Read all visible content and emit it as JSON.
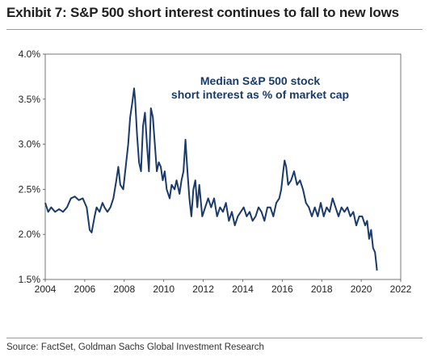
{
  "title": "Exhibit 7: S&P 500 short interest continues to fall to new lows",
  "source": "Source: FactSet, Goldman Sachs Global Investment Research",
  "chart_data": {
    "type": "line",
    "title": "Exhibit 7: S&P 500 short interest continues to fall to new lows",
    "xlabel": "",
    "ylabel": "",
    "xlim": [
      2004,
      2022
    ],
    "ylim": [
      1.5,
      4.0
    ],
    "x_ticks": [
      "2004",
      "2006",
      "2008",
      "2010",
      "2012",
      "2014",
      "2016",
      "2018",
      "2020",
      "2022"
    ],
    "y_ticks": [
      "1.5%",
      "2.0%",
      "2.5%",
      "3.0%",
      "3.5%",
      "4.0%"
    ],
    "grid": false,
    "annotation": [
      "Median S&P 500 stock",
      "short interest as % of market cap"
    ],
    "color": "#1a3a6b",
    "series": [
      {
        "x": [
          2004.0,
          2004.15,
          2004.3,
          2004.5,
          2004.7,
          2004.9,
          2005.1,
          2005.3,
          2005.5,
          2005.7,
          2005.9,
          2006.1,
          2006.25,
          2006.35,
          2006.5,
          2006.6,
          2006.75,
          2006.9,
          2007.0,
          2007.15,
          2007.3,
          2007.45,
          2007.6,
          2007.7,
          2007.8,
          2007.95,
          2008.1,
          2008.2,
          2008.3,
          2008.4,
          2008.5,
          2008.55,
          2008.65,
          2008.75,
          2008.85,
          2008.95,
          2009.05,
          2009.15,
          2009.25,
          2009.35,
          2009.45,
          2009.55,
          2009.65,
          2009.75,
          2009.85,
          2009.95,
          2010.05,
          2010.15,
          2010.3,
          2010.4,
          2010.55,
          2010.65,
          2010.8,
          2010.9,
          2011.0,
          2011.1,
          2011.2,
          2011.3,
          2011.4,
          2011.5,
          2011.6,
          2011.7,
          2011.8,
          2011.95,
          2012.1,
          2012.25,
          2012.4,
          2012.55,
          2012.7,
          2012.85,
          2013.0,
          2013.15,
          2013.3,
          2013.45,
          2013.6,
          2013.75,
          2013.9,
          2014.05,
          2014.2,
          2014.35,
          2014.5,
          2014.65,
          2014.8,
          2014.95,
          2015.1,
          2015.25,
          2015.4,
          2015.55,
          2015.7,
          2015.85,
          2015.95,
          2016.05,
          2016.12,
          2016.2,
          2016.3,
          2016.45,
          2016.6,
          2016.75,
          2016.9,
          2017.05,
          2017.2,
          2017.35,
          2017.5,
          2017.65,
          2017.8,
          2017.95,
          2018.1,
          2018.25,
          2018.4,
          2018.55,
          2018.7,
          2018.85,
          2019.0,
          2019.15,
          2019.3,
          2019.45,
          2019.6,
          2019.75,
          2019.9,
          2020.05,
          2020.2,
          2020.3,
          2020.4,
          2020.5,
          2020.6,
          2020.7,
          2020.8
        ],
        "values": [
          2.35,
          2.25,
          2.3,
          2.25,
          2.28,
          2.25,
          2.3,
          2.4,
          2.42,
          2.38,
          2.4,
          2.3,
          2.05,
          2.02,
          2.2,
          2.3,
          2.25,
          2.35,
          2.3,
          2.25,
          2.3,
          2.4,
          2.6,
          2.75,
          2.55,
          2.5,
          2.8,
          3.0,
          3.3,
          3.45,
          3.62,
          3.5,
          3.1,
          2.8,
          2.7,
          3.2,
          3.35,
          3.0,
          2.7,
          3.4,
          3.3,
          3.0,
          2.7,
          2.8,
          2.75,
          2.6,
          2.7,
          2.5,
          2.4,
          2.55,
          2.5,
          2.6,
          2.45,
          2.6,
          2.7,
          3.05,
          2.7,
          2.4,
          2.2,
          2.5,
          2.6,
          2.3,
          2.55,
          2.2,
          2.3,
          2.4,
          2.3,
          2.4,
          2.2,
          2.3,
          2.25,
          2.35,
          2.15,
          2.25,
          2.1,
          2.2,
          2.25,
          2.3,
          2.2,
          2.25,
          2.15,
          2.2,
          2.3,
          2.25,
          2.15,
          2.3,
          2.3,
          2.2,
          2.35,
          2.4,
          2.5,
          2.7,
          2.82,
          2.75,
          2.55,
          2.6,
          2.7,
          2.55,
          2.6,
          2.5,
          2.35,
          2.3,
          2.2,
          2.3,
          2.2,
          2.35,
          2.2,
          2.3,
          2.25,
          2.4,
          2.3,
          2.2,
          2.3,
          2.25,
          2.3,
          2.2,
          2.25,
          2.1,
          2.2,
          2.2,
          2.1,
          2.15,
          1.95,
          2.05,
          1.85,
          1.8,
          1.6
        ]
      }
    ]
  }
}
